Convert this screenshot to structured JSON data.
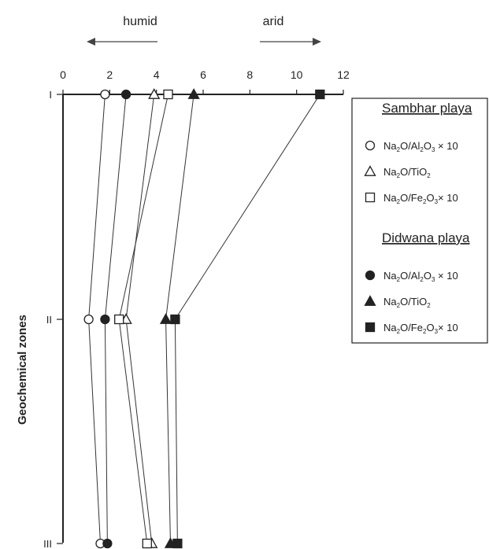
{
  "chart_data": {
    "type": "line",
    "xlim": [
      0,
      12
    ],
    "x_ticks": [
      "0",
      "2",
      "4",
      "6",
      "8",
      "10",
      "12"
    ],
    "zones": [
      "I",
      "II",
      "III"
    ],
    "ylabel": "Geochemical zones",
    "direction_labels": {
      "left": "humid",
      "right": "arid"
    },
    "legend": {
      "groups": [
        {
          "title": "Sambhar playa",
          "entries": [
            {
              "marker": "circle-open",
              "parts": [
                "Na",
                "2",
                "O/Al",
                "2",
                "O",
                "3",
                " × 10"
              ]
            },
            {
              "marker": "triangle-open",
              "parts": [
                "Na",
                "2",
                "O/TiO",
                "2"
              ]
            },
            {
              "marker": "square-open",
              "parts": [
                "Na",
                "2",
                "O/Fe",
                "2",
                "O",
                "3",
                "× 10"
              ]
            }
          ]
        },
        {
          "title": "Didwana playa",
          "entries": [
            {
              "marker": "circle-filled",
              "parts": [
                "Na",
                "2",
                "O/Al",
                "2",
                "O",
                "3",
                " × 10"
              ]
            },
            {
              "marker": "triangle-filled",
              "parts": [
                "Na",
                "2",
                "O/TiO",
                "2"
              ]
            },
            {
              "marker": "square-filled",
              "parts": [
                "Na",
                "2",
                "O/Fe",
                "2",
                "O",
                "3",
                "× 10"
              ]
            }
          ]
        }
      ]
    },
    "series": [
      {
        "playa": "Sambhar playa",
        "ratio": "Na2O/Al2O3 x 10",
        "marker": "circle-open",
        "values": [
          1.8,
          1.1,
          1.6
        ]
      },
      {
        "playa": "Sambhar playa",
        "ratio": "Na2O/TiO2",
        "marker": "triangle-open",
        "values": [
          3.9,
          2.7,
          3.8
        ]
      },
      {
        "playa": "Sambhar playa",
        "ratio": "Na2O/Fe2O3 x 10",
        "marker": "square-open",
        "values": [
          4.5,
          2.4,
          3.6
        ]
      },
      {
        "playa": "Didwana playa",
        "ratio": "Na2O/Al2O3 x 10",
        "marker": "circle-filled",
        "values": [
          2.7,
          1.8,
          1.9
        ]
      },
      {
        "playa": "Didwana playa",
        "ratio": "Na2O/TiO2",
        "marker": "triangle-filled",
        "values": [
          5.6,
          4.4,
          4.6
        ]
      },
      {
        "playa": "Didwana playa",
        "ratio": "Na2O/Fe2O3 x 10",
        "marker": "square-filled",
        "values": [
          11.0,
          4.8,
          4.9
        ]
      }
    ]
  }
}
